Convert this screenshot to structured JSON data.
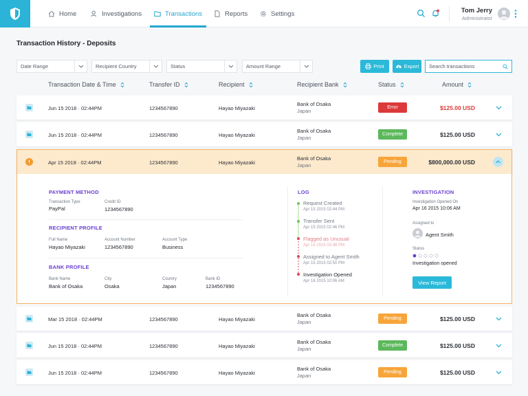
{
  "nav": {
    "items": [
      {
        "label": "Home",
        "icon": "home-icon"
      },
      {
        "label": "Investigations",
        "icon": "user-search-icon"
      },
      {
        "label": "Transactions",
        "icon": "folder-icon",
        "active": true
      },
      {
        "label": "Reports",
        "icon": "document-icon"
      },
      {
        "label": "Settings",
        "icon": "gear-icon"
      }
    ],
    "user_name": "Tom Jerry",
    "user_role": "Administrator"
  },
  "page": {
    "title": "Transaction History - Deposits"
  },
  "filters": {
    "date_range": "Date Range",
    "recipient_country": "Recipient Country",
    "status": "Status",
    "amount_range": "Amount Range",
    "print_label": "Print",
    "export_label": "Export",
    "search_placeholder": "Search transactions"
  },
  "table": {
    "headers": {
      "date": "Transaction Date & Time",
      "transfer_id": "Transfer ID",
      "recipient": "Recipient",
      "bank": "Recipient Bank",
      "status": "Status",
      "amount": "Amount"
    },
    "rows": [
      {
        "date": "Jun 15 2018 · 02:44PM",
        "transfer_id": "1234567890",
        "recipient": "Hayao Miyazaki",
        "bank": "Bank of Osaka",
        "country": "Japan",
        "status": "Error",
        "amount": "$125.00 USD"
      },
      {
        "date": "Jun 15 2018 · 02:44PM",
        "transfer_id": "1234567890",
        "recipient": "Hayao Miyazaki",
        "bank": "Bank of Osaka",
        "country": "Japan",
        "status": "Complete",
        "amount": "$125.00 USD"
      },
      {
        "date": "Apr 15 2018 · 02:44PM",
        "transfer_id": "1234567890",
        "recipient": "Hayao Miyazaki",
        "bank": "Bank of Osaka",
        "country": "Japan",
        "status": "Pending",
        "amount": "$800,000.00 USD"
      },
      {
        "date": "Mar 15 2018 · 02:44PM",
        "transfer_id": "1234567890",
        "recipient": "Hayao Miyazaki",
        "bank": "Bank of Osaka",
        "country": "Japan",
        "status": "Pending",
        "amount": "$125.00 USD"
      },
      {
        "date": "Jun 15 2018 · 02:44PM",
        "transfer_id": "1234567890",
        "recipient": "Hayao Miyazaki",
        "bank": "Bank of Osaka",
        "country": "Japan",
        "status": "Complete",
        "amount": "$125.00 USD"
      },
      {
        "date": "Jun 15 2018 · 02:44PM",
        "transfer_id": "1234567890",
        "recipient": "Hayao Miyazaki",
        "bank": "Bank of Osaka",
        "country": "Japan",
        "status": "Pending",
        "amount": "$125.00 USD"
      }
    ]
  },
  "details": {
    "payment": {
      "title": "PAYMENT METHOD",
      "type_label": "Transaction Type",
      "type_value": "PayPal",
      "credit_label": "Credit ID",
      "credit_value": "1234567890"
    },
    "recipient": {
      "title": "RECIPIENT PROFILE",
      "name_label": "Full Name",
      "name_value": "Hayao Miyazaki",
      "account_label": "Account Number",
      "account_value": "1234567890",
      "acctype_label": "Account Type",
      "acctype_value": "Business"
    },
    "bank": {
      "title": "BANK PROFILE",
      "name_label": "Bank Name",
      "name_value": "Bank of Osaka",
      "city_label": "City",
      "city_value": "Osaka",
      "country_label": "Country",
      "country_value": "Japan",
      "id_label": "Bank ID",
      "id_value": "1234567890"
    },
    "log": {
      "title": "LOG",
      "items": [
        {
          "text": "Request Created",
          "date": "Apr 15 2015 02:44 PM",
          "state": "done"
        },
        {
          "text": "Transfer Sent",
          "date": "Apr 15 2015 02:46 PM",
          "state": "done"
        },
        {
          "text": "Flagged as Unusual",
          "date": "Apr 15 2015 02:48 PM",
          "state": "flag"
        },
        {
          "text": "Assigned to Agent Smith",
          "date": "Apr 15 2015 02:50 PM",
          "state": "neutral"
        },
        {
          "text": "Investigation Opened",
          "date": "Apr 16 2015 10:06 AM",
          "state": "current"
        }
      ]
    },
    "investigation": {
      "title": "INVESTIGATION",
      "opened_label": "Investigation Opened On",
      "opened_value": "Apr 16 2015 10:06 AM",
      "assigned_label": "Assigned to",
      "assigned_value": "Agent Smith",
      "status_label": "Status",
      "status_value": "Investigation opened",
      "status_step": 1,
      "status_steps_total": 5,
      "button": "View Report"
    }
  },
  "colors": {
    "accent": "#2bb9d9",
    "error": "#dc3a3a",
    "complete": "#5cb85c",
    "pending": "#f7a53a",
    "purple": "#6a3fd1"
  }
}
